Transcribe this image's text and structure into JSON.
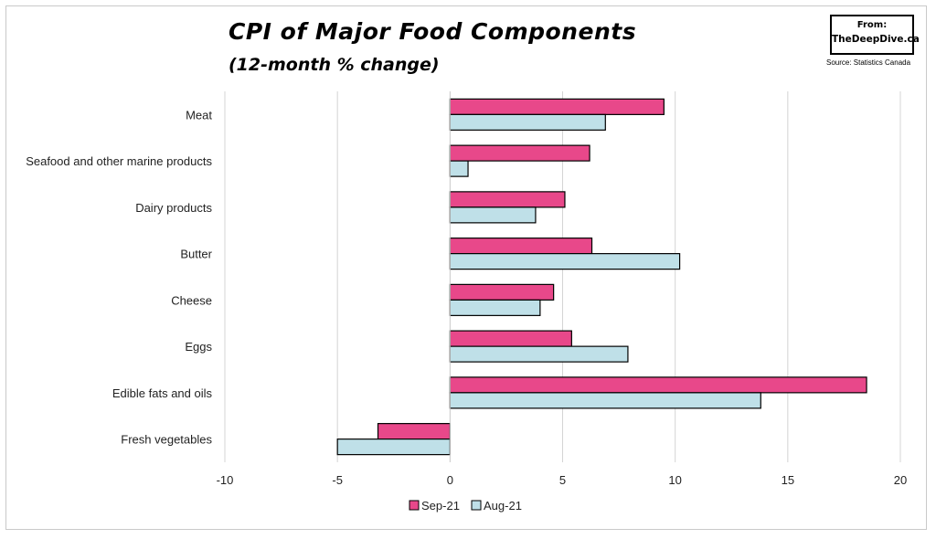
{
  "chart_data": {
    "type": "bar",
    "orientation": "horizontal",
    "title": "CPI of Major Food Components",
    "subtitle": "(12-month % change)",
    "categories": [
      "Meat",
      "Seafood and other marine products",
      "Dairy products",
      "Butter",
      "Cheese",
      "Eggs",
      "Edible fats and oils",
      "Fresh vegetables"
    ],
    "series": [
      {
        "name": "Sep-21",
        "color": "#e8488a",
        "values": [
          9.5,
          6.2,
          5.1,
          6.3,
          4.6,
          5.4,
          18.5,
          -3.2
        ]
      },
      {
        "name": "Aug-21",
        "color": "#bfe0e8",
        "values": [
          6.9,
          0.8,
          3.8,
          10.2,
          4.0,
          7.9,
          13.8,
          -5.0
        ]
      }
    ],
    "xlim": [
      -10,
      20
    ],
    "xticks": [
      "-10",
      "-5",
      "0",
      "5",
      "10",
      "15",
      "20"
    ],
    "grid": true,
    "legend": "bottom"
  },
  "badge": {
    "from": "From:",
    "site": "TheDeepDive.ca"
  },
  "source": "Source: Statistics Canada"
}
